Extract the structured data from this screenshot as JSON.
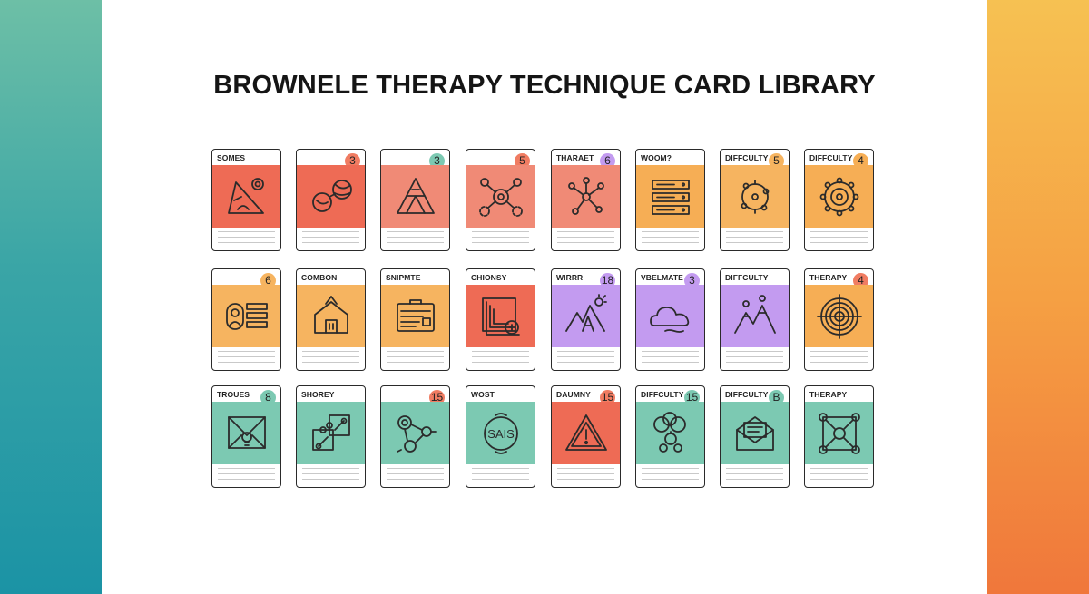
{
  "title": "BROWNELE THERAPY TECHNIQUE CARD LIBRARY",
  "colors": {
    "red": "#ee6b55",
    "salmon": "#f08a76",
    "orange": "#f6ae55",
    "purple": "#c39bf0",
    "teal": "#7cc9b2"
  },
  "rows": [
    [
      {
        "label": "SOMES",
        "badge": "",
        "color": "#ee6b55",
        "badge_color": "",
        "icon": "triangle-ruler-icon"
      },
      {
        "label": "",
        "badge": "3",
        "color": "#ee6b55",
        "badge_color": "#f07c62",
        "icon": "linked-balls-icon"
      },
      {
        "label": "",
        "badge": "3",
        "color": "#f08a76",
        "badge_color": "#7cc9b2",
        "icon": "triangle-pyramid-icon"
      },
      {
        "label": "",
        "badge": "5",
        "color": "#f08a76",
        "badge_color": "#f07c62",
        "icon": "node-network-icon"
      },
      {
        "label": "THARAET",
        "badge": "6",
        "color": "#f08a76",
        "badge_color": "#c39bf0",
        "icon": "node-graph-icon"
      },
      {
        "label": "WOOM?",
        "badge": "",
        "color": "#f6ae55",
        "badge_color": "",
        "icon": "server-rack-icon"
      },
      {
        "label": "DIFFCULTY",
        "badge": "5",
        "color": "#f6b460",
        "badge_color": "#f6b460",
        "icon": "circle-orbit-icon"
      },
      {
        "label": "DIFFCULTY",
        "badge": "4",
        "color": "#f6ae55",
        "badge_color": "#f6ae55",
        "icon": "target-gear-icon"
      }
    ],
    [
      {
        "label": "",
        "badge": "6",
        "color": "#f6b460",
        "badge_color": "#f6b460",
        "icon": "profile-list-icon"
      },
      {
        "label": "COMBON",
        "badge": "",
        "color": "#f6b460",
        "badge_color": "",
        "icon": "house-arrow-icon"
      },
      {
        "label": "SNIPMTE",
        "badge": "",
        "color": "#f6b460",
        "badge_color": "",
        "icon": "id-card-icon"
      },
      {
        "label": "CHIONSY",
        "badge": "",
        "color": "#ee6b55",
        "badge_color": "",
        "icon": "layered-frame-icon"
      },
      {
        "label": "WIRRR",
        "badge": "18",
        "color": "#c39bf0",
        "badge_color": "#c39bf0",
        "icon": "mountain-letter-icon"
      },
      {
        "label": "VBELMATE",
        "badge": "3",
        "color": "#c39bf0",
        "badge_color": "#c39bf0",
        "icon": "cloud-icon"
      },
      {
        "label": "DIFFCULTY",
        "badge": "",
        "color": "#c39bf0",
        "badge_color": "",
        "icon": "mountain-peaks-icon"
      },
      {
        "label": "THERAPY",
        "badge": "4",
        "color": "#f6ae55",
        "badge_color": "#f07c62",
        "icon": "bullseye-icon"
      }
    ],
    [
      {
        "label": "TROUES",
        "badge": "8",
        "color": "#7cc9b2",
        "badge_color": "#7cc9b2",
        "icon": "envelope-bulb-icon"
      },
      {
        "label": "SHOREY",
        "badge": "",
        "color": "#7cc9b2",
        "badge_color": "",
        "icon": "puzzle-pieces-icon"
      },
      {
        "label": "",
        "badge": "15",
        "color": "#7cc9b2",
        "badge_color": "#f07c62",
        "icon": "molecule-icon"
      },
      {
        "label": "WOST",
        "badge": "",
        "color": "#7cc9b2",
        "badge_color": "",
        "icon": "sais-circle-icon"
      },
      {
        "label": "DAUMNY",
        "badge": "15",
        "color": "#ee6b55",
        "badge_color": "#f07c62",
        "icon": "warning-triangle-icon"
      },
      {
        "label": "DIFFCULTY",
        "badge": "15",
        "color": "#7cc9b2",
        "badge_color": "#7cc9b2",
        "icon": "cloud-cluster-icon"
      },
      {
        "label": "DIFFCULTY",
        "badge": "B",
        "color": "#7cc9b2",
        "badge_color": "#7cc9b2",
        "icon": "open-letter-icon"
      },
      {
        "label": "THERAPY",
        "badge": "",
        "color": "#7cc9b2",
        "badge_color": "",
        "icon": "network-square-icon"
      }
    ]
  ],
  "icon_text": {
    "sais": "SAIS"
  }
}
